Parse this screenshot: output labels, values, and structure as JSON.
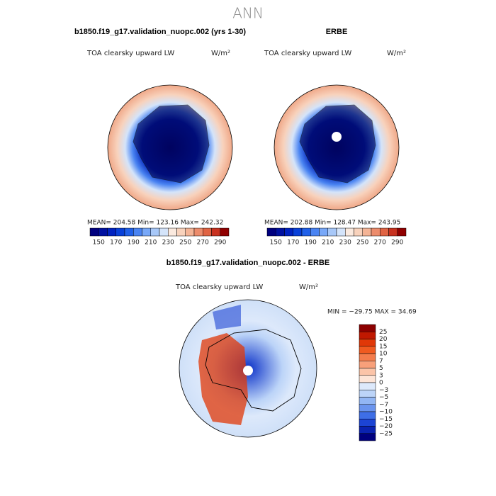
{
  "title": "ANN",
  "panels": [
    {
      "title": "b1850.f19_g17.validation_nuopc.002 (yrs 1-30)",
      "variable": "TOA clearsky upward LW",
      "units": "W/m²",
      "stats": "MEAN= 204.58   Min= 123.16   Max= 242.32"
    },
    {
      "title": "ERBE",
      "variable": "TOA clearsky upward LW",
      "units": "W/m²",
      "stats": "MEAN= 202.88   Min= 128.47   Max= 243.95"
    }
  ],
  "colorbar": {
    "labels": [
      "150",
      "170",
      "190",
      "210",
      "230",
      "250",
      "270",
      "290"
    ],
    "colors": [
      "#00007f",
      "#0010a0",
      "#0022c0",
      "#0840d8",
      "#2060e8",
      "#4a84f2",
      "#78a8f8",
      "#a8c8f8",
      "#d4e4fa",
      "#fbeadf",
      "#f8d2bc",
      "#f4b496",
      "#ec8c6c",
      "#e06444",
      "#c83220",
      "#900000"
    ]
  },
  "difference": {
    "title": "b1850.f19_g17.validation_nuopc.002 - ERBE",
    "variable": "TOA clearsky upward LW",
    "units": "W/m²",
    "stats": "MIN = −29.75 MAX =  34.69",
    "colorbar": {
      "labels": [
        "25",
        "20",
        "15",
        "10",
        "7",
        "5",
        "3",
        "0",
        "−3",
        "−5",
        "−7",
        "−10",
        "−15",
        "−20",
        "−25"
      ],
      "colors": [
        "#8c0000",
        "#c01800",
        "#e03808",
        "#f05a20",
        "#f47c4c",
        "#f8a07a",
        "#fbc4a8",
        "#fde4d6",
        "#dde9fb",
        "#bcd4f8",
        "#92b6f4",
        "#6a94ee",
        "#3e6ee6",
        "#1c44d4",
        "#0a22b0",
        "#00007f"
      ]
    }
  }
}
